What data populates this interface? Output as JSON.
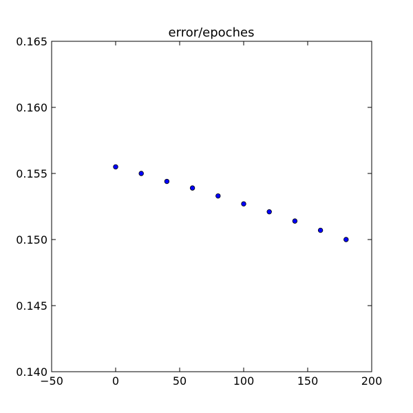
{
  "chart_data": {
    "type": "scatter",
    "title": "error/epoches",
    "xlabel": "",
    "ylabel": "",
    "xlim": [
      -50,
      200
    ],
    "ylim": [
      0.14,
      0.165
    ],
    "xticks": [
      -50,
      0,
      50,
      100,
      150,
      200
    ],
    "xtick_labels": [
      "−50",
      "0",
      "50",
      "100",
      "150",
      "200"
    ],
    "yticks": [
      0.14,
      0.145,
      0.15,
      0.155,
      0.16,
      0.165
    ],
    "ytick_labels": [
      "0.140",
      "0.145",
      "0.150",
      "0.155",
      "0.160",
      "0.165"
    ],
    "grid": false,
    "marker_color": "#0000ff",
    "series": [
      {
        "x": [
          0,
          20,
          40,
          60,
          80,
          100,
          120,
          140,
          160,
          180
        ],
        "y": [
          0.1555,
          0.155,
          0.1544,
          0.1539,
          0.1533,
          0.1527,
          0.1521,
          0.1514,
          0.1507,
          0.15
        ]
      }
    ]
  }
}
